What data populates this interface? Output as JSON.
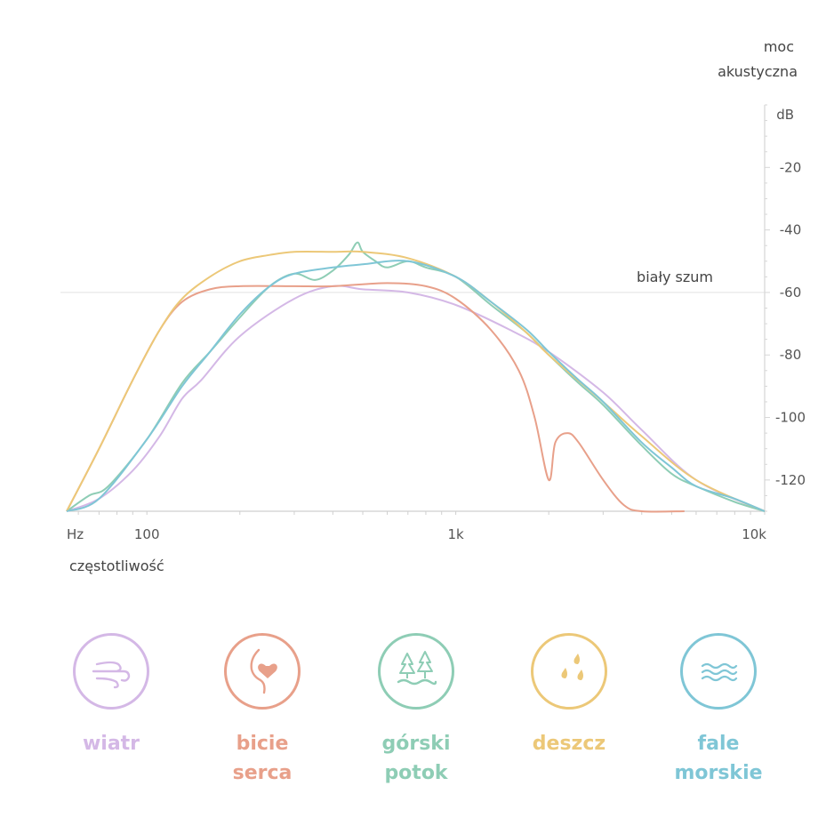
{
  "chart_data": {
    "type": "line",
    "title": "",
    "xlabel": "częstotliwość",
    "xunit": "Hz",
    "ylabel": "moc akustyczna",
    "yunit": "dB",
    "x_scale": "log",
    "xlim": [
      55,
      10000
    ],
    "ylim": [
      -130,
      0
    ],
    "x_ticks": [
      {
        "value": 100,
        "label": "100"
      },
      {
        "value": 1000,
        "label": "1k"
      },
      {
        "value": 10000,
        "label": "10k"
      }
    ],
    "y_ticks": [
      {
        "value": -20,
        "label": "-20"
      },
      {
        "value": -40,
        "label": "-40"
      },
      {
        "value": -60,
        "label": "-60"
      },
      {
        "value": -80,
        "label": "-80"
      },
      {
        "value": -100,
        "label": "-100"
      },
      {
        "value": -120,
        "label": "-120"
      }
    ],
    "reference_line": {
      "value": -60,
      "label": "biały szum"
    },
    "grid": false,
    "legend_position": "bottom",
    "series": [
      {
        "name": "wiatr",
        "color": "#d4b8e6",
        "x": [
          55,
          70,
          90,
          110,
          130,
          150,
          200,
          300,
          400,
          500,
          700,
          1000,
          1500,
          2000,
          3000,
          4000,
          6000,
          10000
        ],
        "y": [
          -130,
          -126,
          -117,
          -106,
          -94,
          -88,
          -74,
          -62,
          -58,
          -59,
          -60,
          -64,
          -72,
          -79,
          -92,
          -104,
          -120,
          -130
        ]
      },
      {
        "name": "bicie serca",
        "color": "#e8a08a",
        "x": [
          55,
          70,
          90,
          110,
          130,
          160,
          200,
          300,
          400,
          600,
          800,
          1000,
          1300,
          1600,
          1800,
          2000,
          2100,
          2300,
          2500,
          3000,
          3500,
          4000,
          5500
        ],
        "y": [
          -130,
          -110,
          -88,
          -72,
          -63,
          -59,
          -58,
          -58,
          -58,
          -57,
          -58,
          -62,
          -72,
          -85,
          -100,
          -120,
          -108,
          -105,
          -108,
          -120,
          -128,
          -130,
          -130
        ]
      },
      {
        "name": "górski potok",
        "color": "#8ecdb5",
        "x": [
          55,
          65,
          75,
          100,
          130,
          160,
          200,
          250,
          300,
          350,
          400,
          450,
          480,
          500,
          550,
          600,
          700,
          800,
          1000,
          1300,
          1700,
          2000,
          2500,
          3000,
          4000,
          5000,
          6000,
          8000,
          10000
        ],
        "y": [
          -130,
          -125,
          -122,
          -107,
          -89,
          -79,
          -68,
          -58,
          -54,
          -56,
          -53,
          -48,
          -44,
          -47,
          -50,
          -52,
          -50,
          -52,
          -55,
          -64,
          -73,
          -80,
          -89,
          -96,
          -109,
          -118,
          -122,
          -127,
          -130
        ]
      },
      {
        "name": "deszcz",
        "color": "#ecc878",
        "x": [
          55,
          70,
          90,
          110,
          130,
          160,
          200,
          250,
          300,
          400,
          500,
          700,
          1000,
          1300,
          1700,
          2000,
          3000,
          4000,
          6000,
          10000
        ],
        "y": [
          -130,
          -110,
          -88,
          -72,
          -62,
          -55,
          -50,
          -48,
          -47,
          -47,
          -47,
          -49,
          -55,
          -63,
          -73,
          -80,
          -95,
          -106,
          -120,
          -130
        ]
      },
      {
        "name": "fale morskie",
        "color": "#7fc6d6",
        "x": [
          55,
          70,
          100,
          130,
          160,
          200,
          250,
          300,
          400,
          500,
          700,
          1000,
          1300,
          1700,
          2000,
          2500,
          3000,
          4000,
          5000,
          6000,
          8000,
          10000
        ],
        "y": [
          -130,
          -126,
          -107,
          -90,
          -79,
          -67,
          -58,
          -54,
          -52,
          -51,
          -50,
          -55,
          -63,
          -72,
          -79,
          -88,
          -95,
          -108,
          -116,
          -122,
          -126,
          -130
        ]
      }
    ]
  },
  "legend": [
    {
      "label_line1": "wiatr",
      "label_line2": "",
      "color": "#d4b8e6",
      "icon": "wind-icon"
    },
    {
      "label_line1": "bicie",
      "label_line2": "serca",
      "color": "#e8a08a",
      "icon": "heartbeat-icon"
    },
    {
      "label_line1": "górski",
      "label_line2": "potok",
      "color": "#8ecdb5",
      "icon": "mountain-stream-icon"
    },
    {
      "label_line1": "deszcz",
      "label_line2": "",
      "color": "#ecc878",
      "icon": "rain-drops-icon"
    },
    {
      "label_line1": "fale",
      "label_line2": "morskie",
      "color": "#7fc6d6",
      "icon": "sea-waves-icon"
    }
  ]
}
